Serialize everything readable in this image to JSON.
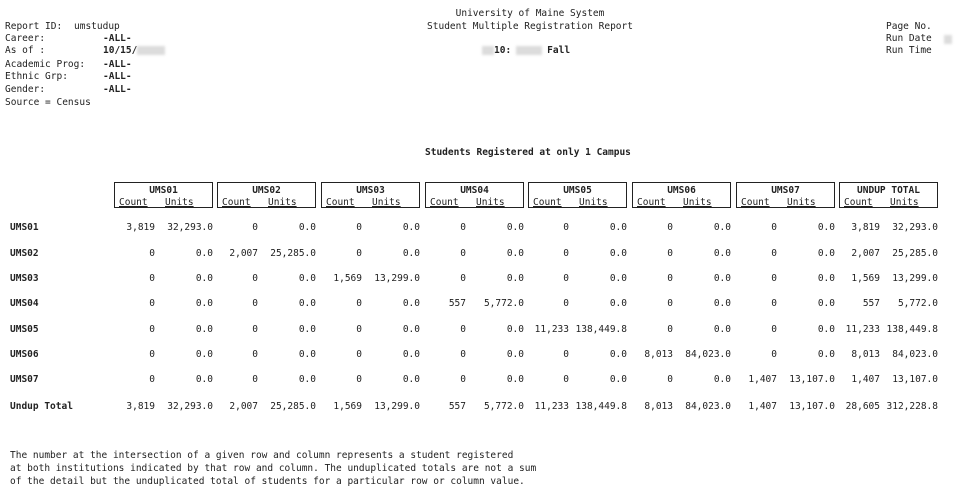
{
  "header": {
    "report_id_label": "Report ID:",
    "report_id_value": "umstudup",
    "career_label": "Career:",
    "career_value": "-ALL-",
    "as_of_label": "As of :",
    "as_of_value": "10/15/",
    "academic_prog_label": "Academic Prog:",
    "academic_prog_value": "-ALL-",
    "ethnic_grp_label": "Ethnic Grp:",
    "ethnic_grp_value": "-ALL-",
    "gender_label": "Gender:",
    "gender_value": "-ALL-",
    "source_text": "Source = Census",
    "org_title": "University of Maine System",
    "report_title": "Student Multiple Registration Report",
    "term_code": "10:",
    "term_name": "Fall",
    "page_no_label": "Page No.",
    "run_date_label": "Run Date",
    "run_time_label": "Run Time"
  },
  "section_title": "Students Registered at only 1 Campus",
  "table": {
    "count_label": "Count",
    "units_label": "Units",
    "column_groups": [
      "UMS01",
      "UMS02",
      "UMS03",
      "UMS04",
      "UMS05",
      "UMS06",
      "UMS07",
      "UNDUP TOTAL"
    ],
    "rows": [
      {
        "label": "UMS01",
        "cells": [
          "3,819",
          "32,293.0",
          "0",
          "0.0",
          "0",
          "0.0",
          "0",
          "0.0",
          "0",
          "0.0",
          "0",
          "0.0",
          "0",
          "0.0",
          "3,819",
          "32,293.0"
        ]
      },
      {
        "label": "UMS02",
        "cells": [
          "0",
          "0.0",
          "2,007",
          "25,285.0",
          "0",
          "0.0",
          "0",
          "0.0",
          "0",
          "0.0",
          "0",
          "0.0",
          "0",
          "0.0",
          "2,007",
          "25,285.0"
        ]
      },
      {
        "label": "UMS03",
        "cells": [
          "0",
          "0.0",
          "0",
          "0.0",
          "1,569",
          "13,299.0",
          "0",
          "0.0",
          "0",
          "0.0",
          "0",
          "0.0",
          "0",
          "0.0",
          "1,569",
          "13,299.0"
        ]
      },
      {
        "label": "UMS04",
        "cells": [
          "0",
          "0.0",
          "0",
          "0.0",
          "0",
          "0.0",
          "557",
          "5,772.0",
          "0",
          "0.0",
          "0",
          "0.0",
          "0",
          "0.0",
          "557",
          "5,772.0"
        ]
      },
      {
        "label": "UMS05",
        "cells": [
          "0",
          "0.0",
          "0",
          "0.0",
          "0",
          "0.0",
          "0",
          "0.0",
          "11,233",
          "138,449.8",
          "0",
          "0.0",
          "0",
          "0.0",
          "11,233",
          "138,449.8"
        ]
      },
      {
        "label": "UMS06",
        "cells": [
          "0",
          "0.0",
          "0",
          "0.0",
          "0",
          "0.0",
          "0",
          "0.0",
          "0",
          "0.0",
          "8,013",
          "84,023.0",
          "0",
          "0.0",
          "8,013",
          "84,023.0"
        ]
      },
      {
        "label": "UMS07",
        "cells": [
          "0",
          "0.0",
          "0",
          "0.0",
          "0",
          "0.0",
          "0",
          "0.0",
          "0",
          "0.0",
          "0",
          "0.0",
          "1,407",
          "13,107.0",
          "1,407",
          "13,107.0"
        ]
      },
      {
        "label": "Undup Total",
        "cells": [
          "3,819",
          "32,293.0",
          "2,007",
          "25,285.0",
          "1,569",
          "13,299.0",
          "557",
          "5,772.0",
          "11,233",
          "138,449.8",
          "8,013",
          "84,023.0",
          "1,407",
          "13,107.0",
          "28,605",
          "312,228.8"
        ]
      }
    ]
  },
  "footnote": [
    "The number at the intersection of a given row and column represents a student registered",
    "at both institutions indicated by that row and column. The unduplicated totals are not a sum",
    "of the detail but the unduplicated total of students for a particular row or column value."
  ]
}
